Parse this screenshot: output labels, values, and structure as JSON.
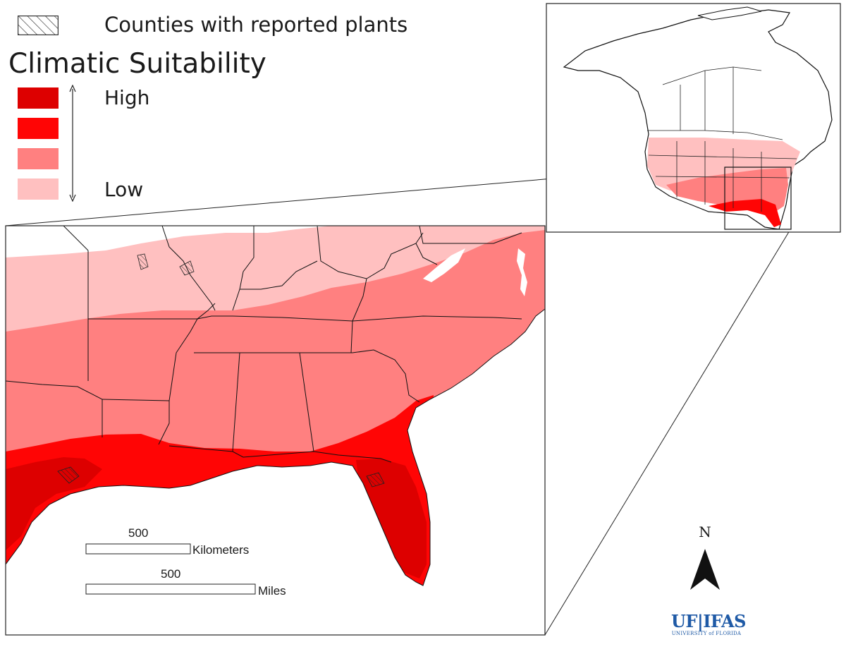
{
  "legend": {
    "hatch_label": "Counties with reported plants",
    "title": "Climatic Suitability",
    "levels": [
      {
        "label": "High",
        "color": "#dd0000"
      },
      {
        "label": "",
        "color": "#ff0505"
      },
      {
        "label": "",
        "color": "#ff8080"
      },
      {
        "label": "Low",
        "color": "#ffc0c0"
      }
    ]
  },
  "scale": {
    "km_value": "500",
    "km_unit": "Kilometers",
    "mi_value": "500",
    "mi_unit": "Miles"
  },
  "north_label": "N",
  "logo": {
    "main": "UF|IFAS",
    "sub": "UNIVERSITY of FLORIDA"
  },
  "colors": {
    "border": "#222222",
    "land": "#ffffff",
    "water": "#ffffff"
  }
}
